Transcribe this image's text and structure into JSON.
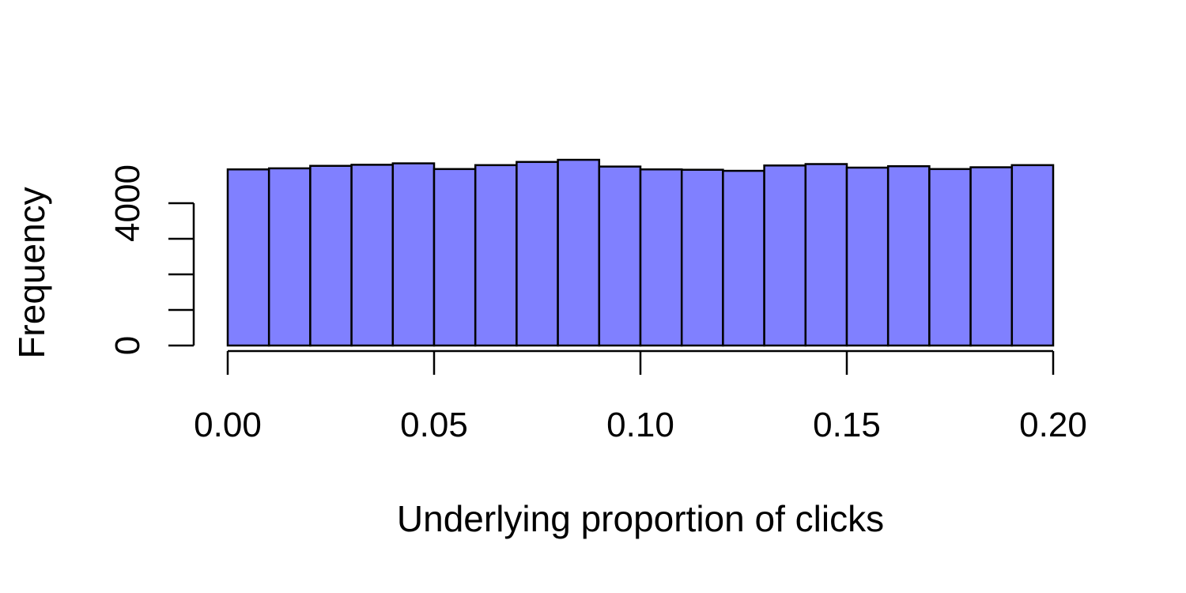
{
  "chart_data": {
    "type": "bar",
    "title": "",
    "xlabel": "Underlying proportion of clicks",
    "ylabel": "Frequency",
    "bar_color": "#8080FF",
    "edge_color": "#000000",
    "bin_edges": [
      0.0,
      0.01,
      0.02,
      0.03,
      0.04,
      0.05,
      0.06,
      0.07,
      0.08,
      0.09,
      0.1,
      0.11,
      0.12,
      0.13,
      0.14,
      0.15,
      0.16,
      0.17,
      0.18,
      0.19,
      0.2
    ],
    "values": [
      4950,
      4980,
      5050,
      5080,
      5120,
      4960,
      5070,
      5160,
      5220,
      5030,
      4950,
      4940,
      4910,
      5060,
      5100,
      5000,
      5040,
      4960,
      5010,
      5070
    ],
    "xlim": [
      0,
      0.2
    ],
    "ylim": [
      0,
      5000
    ],
    "x_ticks": [
      0.0,
      0.05,
      0.1,
      0.15,
      0.2
    ],
    "x_tick_labels": [
      "0.00",
      "0.05",
      "0.10",
      "0.15",
      "0.20"
    ],
    "y_ticks": [
      0,
      1000,
      2000,
      3000,
      4000,
      5000
    ],
    "y_tick_labels": [
      {
        "value": 0,
        "text": "0"
      },
      {
        "value": 4000,
        "text": "4000"
      }
    ]
  }
}
